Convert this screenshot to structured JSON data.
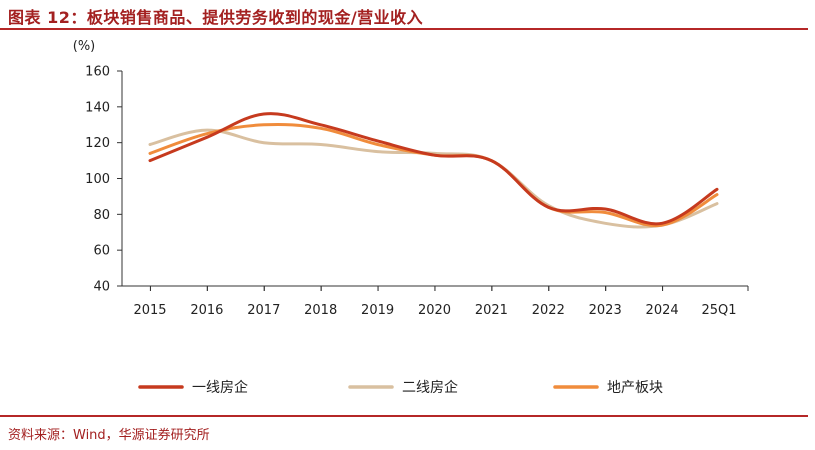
{
  "title": "图表 12：板块销售商品、提供劳务收到的现金/营业收入",
  "source": "资料来源：Wind，华源证券研究所",
  "chart_data": {
    "type": "line",
    "unit_label": "(%)",
    "categories": [
      "2015",
      "2016",
      "2017",
      "2018",
      "2019",
      "2020",
      "2021",
      "2022",
      "2023",
      "2024",
      "25Q1"
    ],
    "ylim": [
      40,
      160
    ],
    "yticks": [
      40,
      60,
      80,
      100,
      120,
      140,
      160
    ],
    "grid": false,
    "legend_position": "bottom",
    "series": [
      {
        "name": "一线房企",
        "color": "#c63a1e",
        "values": [
          110,
          123,
          136,
          130,
          121,
          113,
          110,
          84,
          83,
          75,
          94
        ]
      },
      {
        "name": "二线房企",
        "color": "#d9c0a0",
        "values": [
          119,
          127,
          120,
          119,
          115,
          114,
          110,
          85,
          75,
          74,
          86
        ]
      },
      {
        "name": "地产板块",
        "color": "#f08c3c",
        "values": [
          114,
          125,
          130,
          128,
          119,
          113,
          110,
          84,
          81,
          74,
          91
        ]
      }
    ]
  }
}
